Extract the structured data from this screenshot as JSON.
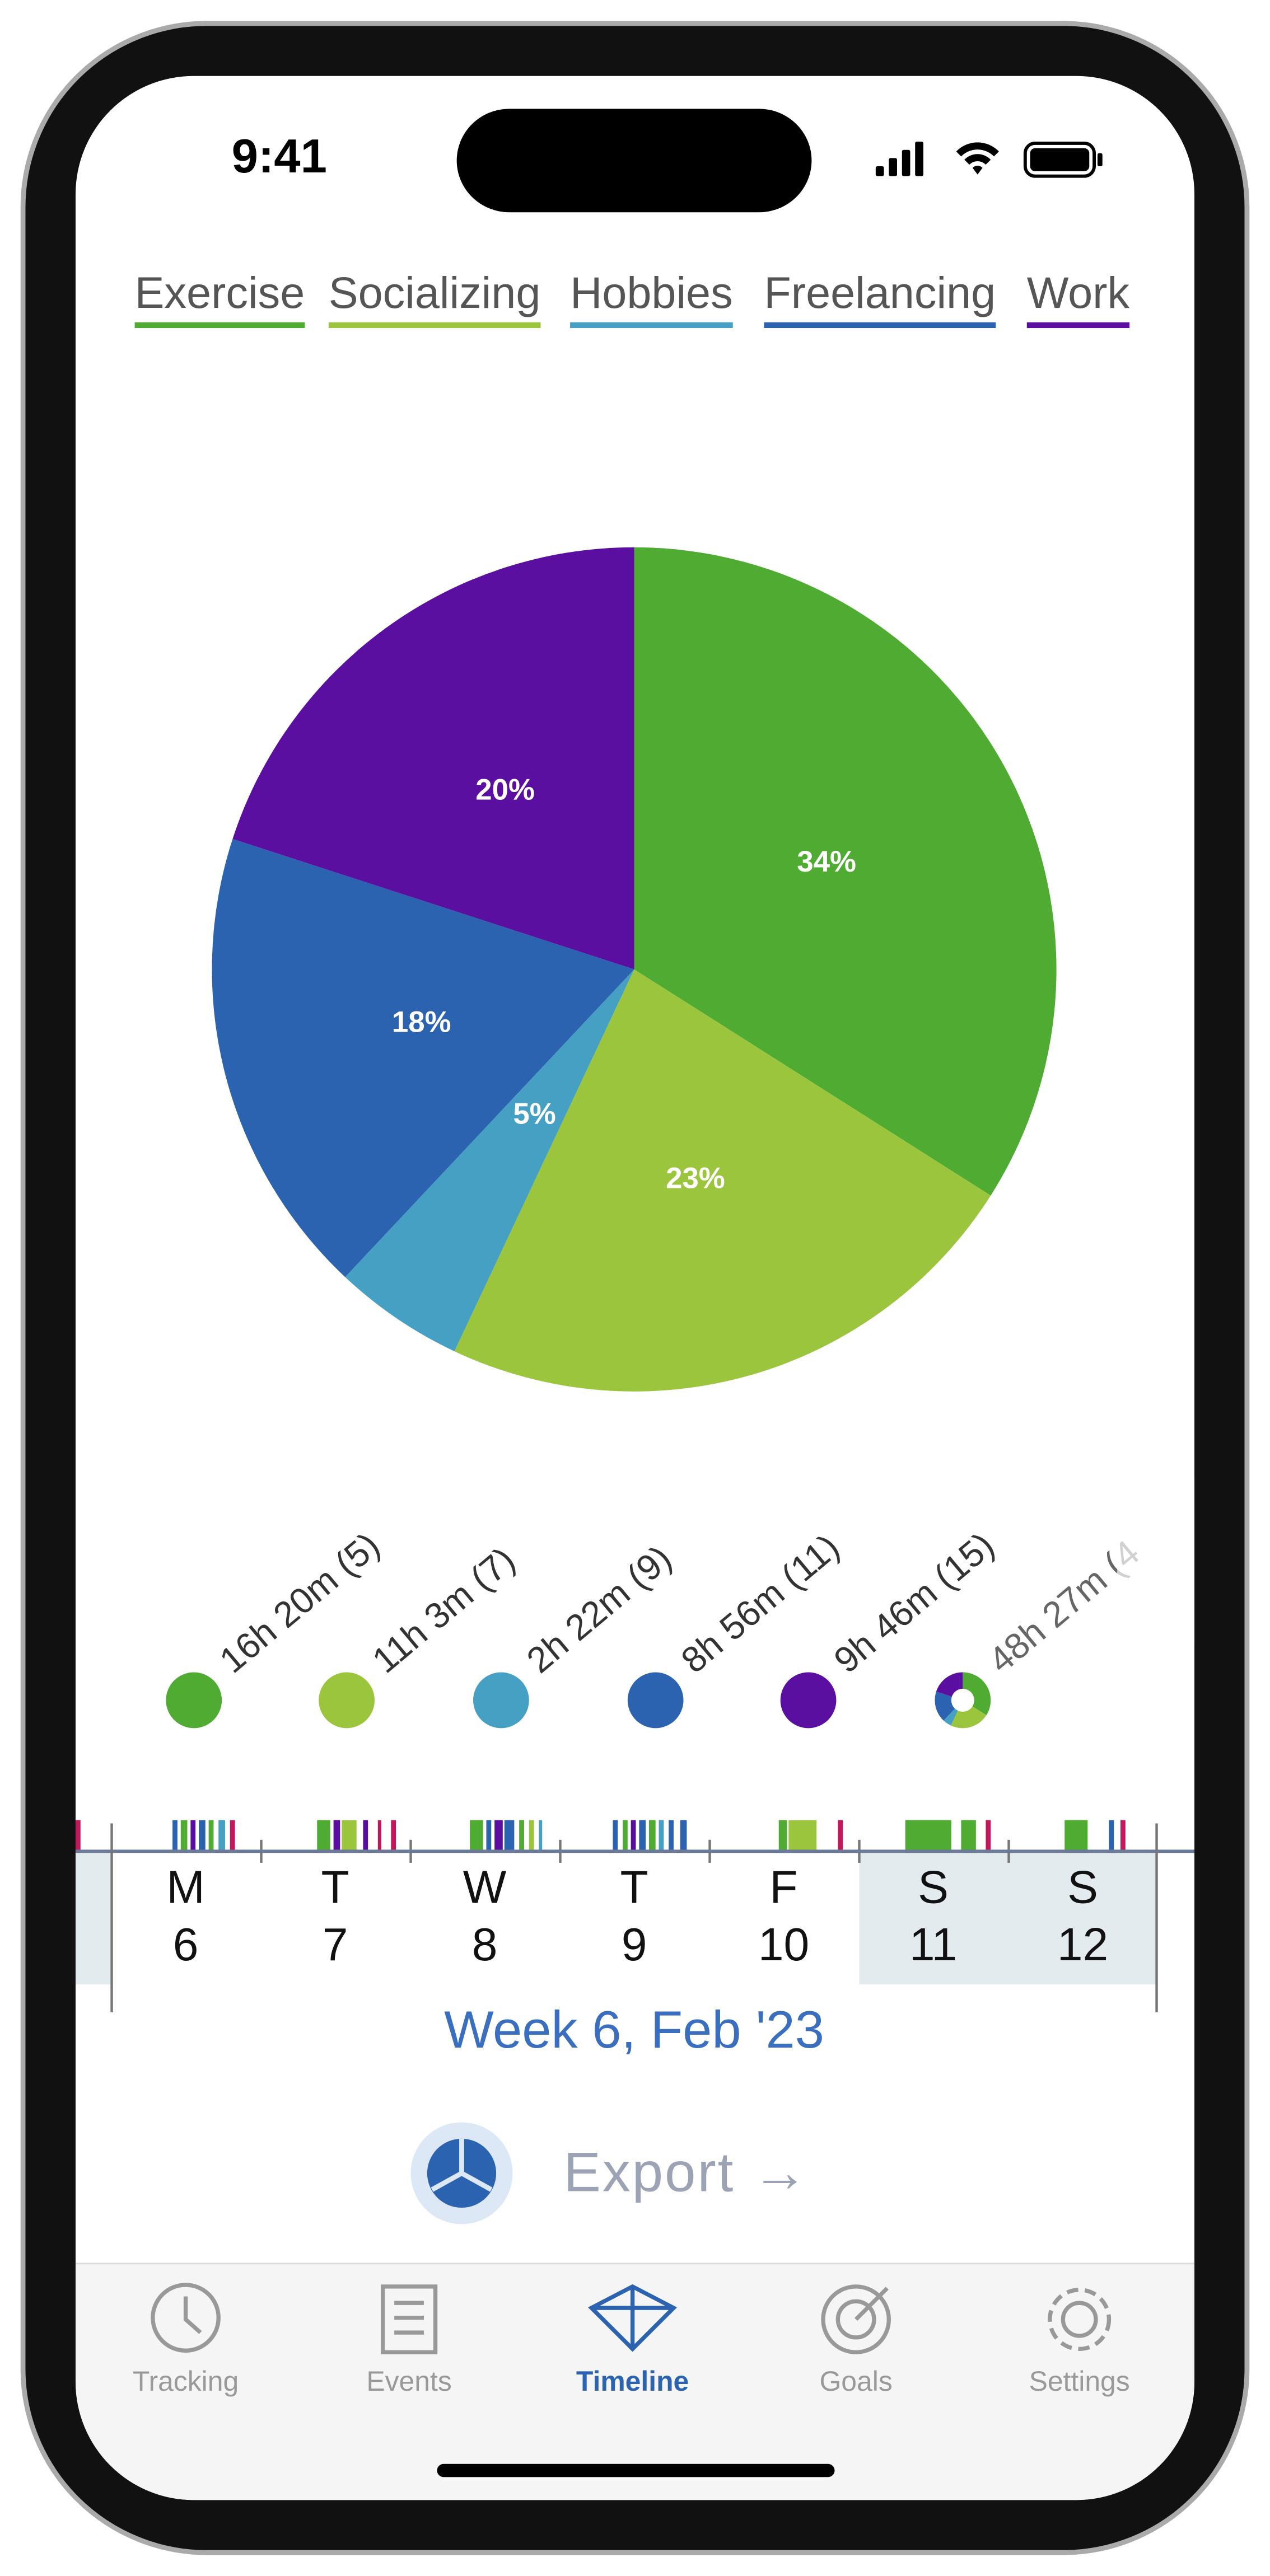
{
  "status_bar": {
    "time": "9:41"
  },
  "chart_data": {
    "type": "pie",
    "categories": [
      "Exercise",
      "Socializing",
      "Hobbies",
      "Freelancing",
      "Work"
    ],
    "values": [
      34,
      23,
      5,
      18,
      20
    ],
    "value_labels": [
      "34%",
      "23%",
      "5%",
      "18%",
      "20%"
    ],
    "colors": [
      "#4fab32",
      "#9bc53d",
      "#46a0c4",
      "#2b63b0",
      "#5a0fa0"
    ]
  },
  "summary": [
    "16h 20m (5)",
    "11h 3m (7)",
    "2h 22m (9)",
    "8h 56m (11)",
    "9h 46m (15)",
    "48h 27m (4"
  ],
  "week": {
    "days": [
      {
        "letter": "M",
        "number": "6"
      },
      {
        "letter": "T",
        "number": "7"
      },
      {
        "letter": "W",
        "number": "8"
      },
      {
        "letter": "T",
        "number": "9"
      },
      {
        "letter": "F",
        "number": "10"
      },
      {
        "letter": "S",
        "number": "11"
      },
      {
        "letter": "S",
        "number": "12"
      }
    ],
    "label": "Week 6, Feb '23"
  },
  "export": "Export →",
  "tabs": [
    "Tracking",
    "Events",
    "Timeline",
    "Goals",
    "Settings"
  ]
}
